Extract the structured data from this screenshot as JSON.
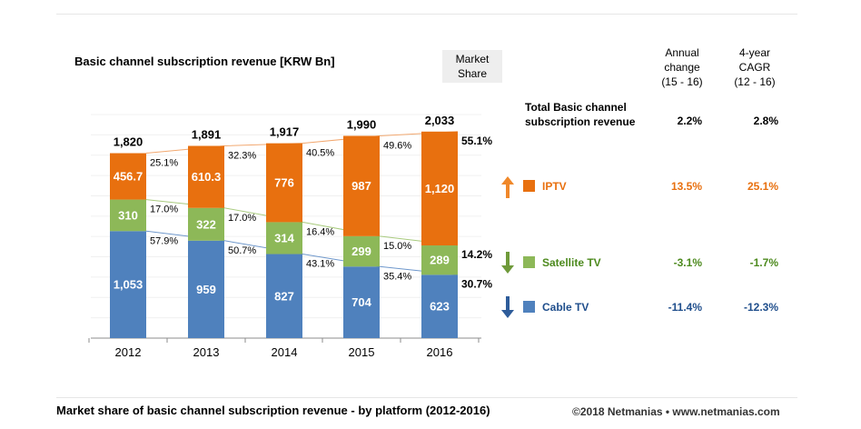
{
  "title": "Basic channel subscription revenue [KRW Bn]",
  "market_share_label": [
    "Market",
    "Share"
  ],
  "headers": {
    "annual": [
      "Annual",
      "change",
      "(15 - 16)"
    ],
    "cagr": [
      "4-year",
      "CAGR",
      "(12 - 16)"
    ]
  },
  "total": {
    "label": [
      "Total Basic channel",
      "subscription revenue"
    ],
    "annual": "2.2%",
    "cagr": "2.8%"
  },
  "platforms": [
    {
      "name": "IPTV",
      "annual": "13.5%",
      "cagr": "25.1%",
      "color": "#e8700f",
      "value_color": "#e8700f",
      "arrow": "up",
      "arrow_color": "#f0882a"
    },
    {
      "name": "Satellite TV",
      "annual": "-3.1%",
      "cagr": "-1.7%",
      "color": "#8db858",
      "value_color": "#4d8a1e",
      "arrow": "down",
      "arrow_color": "#6f9a3a"
    },
    {
      "name": "Cable TV",
      "annual": "-11.4%",
      "cagr": "-12.3%",
      "color": "#4f81bd",
      "value_color": "#1f4e8c",
      "arrow": "down",
      "arrow_color": "#2e5c9a"
    }
  ],
  "bottom_title": "Market share of basic channel subscription revenue  - by platform (2012-2016)",
  "copyright": "©2018 Netmanias • www.netmanias.com",
  "chart_data": {
    "type": "bar",
    "stacked": true,
    "categories": [
      "2012",
      "2013",
      "2014",
      "2015",
      "2016"
    ],
    "totals": [
      "1,820",
      "1,891",
      "1,917",
      "1,990",
      "2,033"
    ],
    "series": [
      {
        "name": "Cable TV",
        "values": [
          1053,
          959,
          827,
          704,
          623
        ],
        "labels": [
          "1,053",
          "959",
          "827",
          "704",
          "623"
        ],
        "share": [
          "57.9%",
          "50.7%",
          "43.1%",
          "35.4%",
          "30.7%"
        ],
        "color": "#4f81bd",
        "line_color": "#6f98cc"
      },
      {
        "name": "Satellite TV",
        "values": [
          310,
          322,
          314,
          299,
          289
        ],
        "labels": [
          "310",
          "322",
          "314",
          "299",
          "289"
        ],
        "share": [
          "17.0%",
          "17.0%",
          "16.4%",
          "15.0%",
          "14.2%"
        ],
        "color": "#8db858",
        "line_color": "#a9cb7f"
      },
      {
        "name": "IPTV",
        "values": [
          456.7,
          610.3,
          776,
          987,
          1120
        ],
        "labels": [
          "456.7",
          "610.3",
          "776",
          "987",
          "1,120"
        ],
        "share": [
          "25.1%",
          "32.3%",
          "40.5%",
          "49.6%",
          "55.1%"
        ],
        "color": "#e8700f",
        "line_color": "#f2a870"
      }
    ],
    "ylim": [
      0,
      2200
    ],
    "grid": true
  }
}
